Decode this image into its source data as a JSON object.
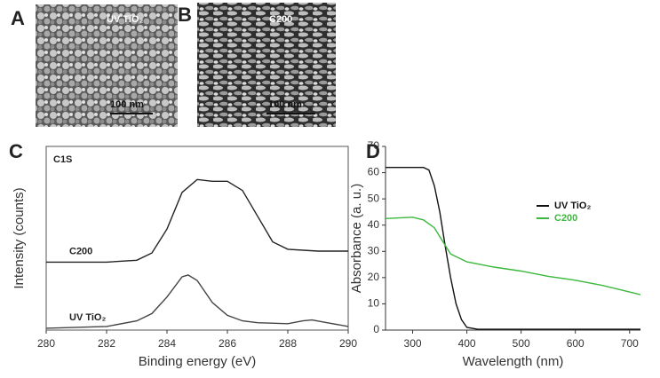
{
  "image_panels": [
    {
      "letter": "A",
      "label": "UV TiO₂",
      "scale_bar": "100 nm"
    },
    {
      "letter": "B",
      "label": "C200",
      "scale_bar": "100 nm"
    }
  ],
  "chart_data": [
    {
      "type": "line",
      "letter": "C",
      "annotation": "C1S",
      "x_label": "Binding energy (eV)",
      "y_label": "Intensity (counts)",
      "xlim": [
        280,
        290
      ],
      "xticks": [
        280,
        282,
        284,
        286,
        288,
        290
      ],
      "ylim": [
        0,
        100
      ],
      "frame": "box",
      "legend": "inline",
      "series": [
        {
          "name": "C200",
          "color": "#222222",
          "x": [
            280,
            282,
            283,
            283.5,
            284,
            284.5,
            285,
            285.5,
            286,
            286.5,
            287,
            287.5,
            288,
            289,
            290
          ],
          "values": [
            37,
            37,
            38,
            42,
            55,
            75,
            82,
            81,
            81,
            76,
            62,
            48,
            44,
            43,
            43
          ]
        },
        {
          "name": "UV TiO₂",
          "color": "#444444",
          "x": [
            280,
            282,
            283,
            283.5,
            284,
            284.5,
            284.7,
            285,
            285.5,
            286,
            286.5,
            287,
            288,
            288.5,
            288.8,
            289.3,
            290
          ],
          "values": [
            1,
            2,
            5,
            9,
            18,
            29,
            30,
            27,
            15,
            8,
            5,
            4,
            3.5,
            5,
            5.5,
            4,
            2
          ]
        }
      ]
    },
    {
      "type": "line",
      "letter": "D",
      "x_label": "Wavelength (nm)",
      "y_label": "Absorbance (a. u.)",
      "xlim": [
        250,
        720
      ],
      "xticks": [
        300,
        400,
        500,
        600,
        700
      ],
      "ylim": [
        0,
        70
      ],
      "yticks": [
        0,
        10,
        20,
        30,
        40,
        50,
        60,
        70
      ],
      "frame": "axes",
      "legend": "right",
      "series": [
        {
          "name": "UV TiO₂",
          "color": "#111111",
          "x": [
            250,
            280,
            320,
            330,
            340,
            350,
            360,
            370,
            380,
            390,
            400,
            420,
            500,
            600,
            720
          ],
          "values": [
            62,
            62,
            62,
            61,
            55,
            45,
            32,
            20,
            10,
            4,
            1,
            0.3,
            0.3,
            0.3,
            0.3
          ]
        },
        {
          "name": "C200",
          "color": "#3cb83c",
          "x": [
            250,
            300,
            320,
            340,
            355,
            370,
            400,
            450,
            500,
            550,
            600,
            650,
            700,
            720
          ],
          "values": [
            42.5,
            43,
            42,
            39,
            34,
            29,
            26,
            24,
            22.5,
            20.5,
            19,
            17,
            14.5,
            13.5
          ]
        }
      ]
    }
  ]
}
